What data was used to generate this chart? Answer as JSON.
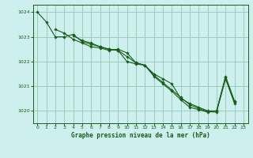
{
  "title": "Graphe pression niveau de la mer (hPa)",
  "bg_color": "#cdf0ee",
  "grid_color": "#99ccbb",
  "line_color": "#1a5c1a",
  "marker_color": "#1a5c1a",
  "xlim": [
    -0.5,
    23.5
  ],
  "ylim": [
    1019.5,
    1024.3
  ],
  "yticks": [
    1020,
    1021,
    1022,
    1023,
    1024
  ],
  "xticks": [
    0,
    1,
    2,
    3,
    4,
    5,
    6,
    7,
    8,
    9,
    10,
    11,
    12,
    13,
    14,
    15,
    16,
    17,
    18,
    19,
    20,
    21,
    22,
    23
  ],
  "series": [
    [
      1024.0,
      1023.6,
      1023.0,
      1023.0,
      1023.1,
      1022.8,
      1022.7,
      1022.6,
      1022.5,
      1022.45,
      1022.0,
      1021.9,
      1021.85,
      1021.5,
      1021.3,
      1021.1,
      1020.5,
      1020.3,
      1020.15,
      1020.0,
      1020.0,
      1021.4,
      1020.4,
      null
    ],
    [
      null,
      null,
      1023.3,
      1023.15,
      1022.9,
      1022.75,
      1022.6,
      1022.55,
      1022.45,
      1022.5,
      1022.35,
      1021.95,
      1021.85,
      1021.4,
      1021.1,
      1020.8,
      1020.45,
      1020.15,
      1020.05,
      1019.95,
      1020.0,
      1021.35,
      1020.35,
      null
    ],
    [
      null,
      null,
      null,
      null,
      1023.05,
      1022.85,
      1022.75,
      1022.6,
      1022.5,
      1022.45,
      1022.2,
      1021.95,
      1021.85,
      1021.45,
      1021.15,
      1020.85,
      1020.55,
      1020.25,
      1020.1,
      1019.97,
      1019.95,
      1021.3,
      1020.3,
      null
    ]
  ]
}
